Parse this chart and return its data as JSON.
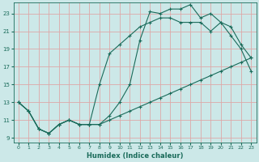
{
  "xlabel": "Humidex (Indice chaleur)",
  "bg_color": "#cce8e8",
  "grid_color": "#dda8a8",
  "line_color": "#1a6b5a",
  "xlim": [
    -0.5,
    23.5
  ],
  "ylim": [
    8.5,
    24.2
  ],
  "xticks": [
    0,
    1,
    2,
    3,
    4,
    5,
    6,
    7,
    8,
    9,
    10,
    11,
    12,
    13,
    14,
    15,
    16,
    17,
    18,
    19,
    20,
    21,
    22,
    23
  ],
  "yticks": [
    9,
    11,
    13,
    15,
    17,
    19,
    21,
    23
  ],
  "line1_x": [
    0,
    1,
    2,
    3,
    4,
    5,
    6,
    7,
    8,
    9,
    10,
    11,
    12,
    13,
    14,
    15,
    16,
    17,
    18,
    19,
    20,
    21,
    22,
    23
  ],
  "line1_y": [
    13,
    12,
    10,
    9.5,
    10.5,
    11,
    10.5,
    10.5,
    10.5,
    11.5,
    13,
    15,
    20,
    23.2,
    23,
    23.5,
    23.5,
    24,
    22.5,
    23,
    22,
    20.5,
    19,
    16.5
  ],
  "line2_x": [
    0,
    1,
    2,
    3,
    4,
    5,
    6,
    7,
    8,
    9,
    10,
    11,
    12,
    13,
    14,
    15,
    16,
    17,
    18,
    19,
    20,
    21,
    22,
    23
  ],
  "line2_y": [
    13,
    12,
    10,
    9.5,
    10.5,
    11,
    10.5,
    10.5,
    15,
    18.5,
    19.5,
    20.5,
    21.5,
    22,
    22.5,
    22.5,
    22,
    22,
    22,
    21,
    22,
    21.5,
    19.5,
    18
  ],
  "line3_x": [
    0,
    1,
    2,
    3,
    4,
    5,
    6,
    7,
    8,
    9,
    10,
    11,
    12,
    13,
    14,
    15,
    16,
    17,
    18,
    19,
    20,
    21,
    22,
    23
  ],
  "line3_y": [
    13,
    12,
    10,
    9.5,
    10.5,
    11,
    10.5,
    10.5,
    10.5,
    11,
    11.5,
    12,
    12.5,
    13,
    13.5,
    14,
    14.5,
    15,
    15.5,
    16,
    16.5,
    17,
    17.5,
    18
  ]
}
